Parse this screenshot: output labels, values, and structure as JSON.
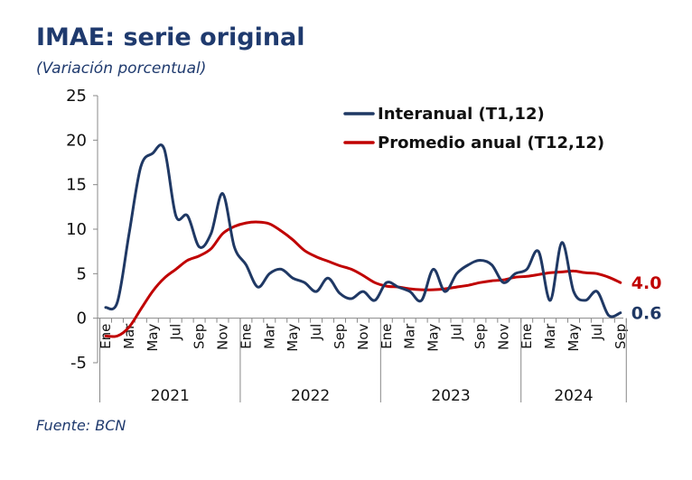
{
  "title": "IMAE: serie original",
  "subtitle": "(Variación porcentual)",
  "source": "Fuente: BCN",
  "chart_data": {
    "type": "line",
    "ylim": [
      -5,
      25
    ],
    "yticks": [
      "-5",
      "0",
      "5",
      "10",
      "15",
      "20",
      "25"
    ],
    "month_labels": [
      "Ene",
      "Mar",
      "May",
      "Jul",
      "Sep",
      "Nov",
      "Ene",
      "Mar",
      "May",
      "Jul",
      "Sep",
      "Nov",
      "Ene",
      "Mar",
      "May",
      "Jul",
      "Sep",
      "Nov",
      "Ene",
      "Mar",
      "May",
      "Jul",
      "Sep"
    ],
    "years": [
      "2021",
      "2022",
      "2023",
      "2024"
    ],
    "legend_position": "top-right",
    "series": [
      {
        "name": "Interanual (T1,12)",
        "color": "#1f3864",
        "values": [
          1.2,
          1.8,
          9.5,
          17.0,
          18.5,
          19.0,
          11.5,
          11.5,
          8.0,
          9.5,
          14.0,
          8.0,
          6.0,
          3.5,
          5.0,
          5.5,
          4.5,
          4.0,
          3.0,
          4.5,
          2.8,
          2.2,
          3.0,
          2.0,
          4.0,
          3.5,
          3.0,
          2.0,
          5.5,
          3.0,
          5.0,
          6.0,
          6.5,
          6.0,
          4.0,
          5.0,
          5.5,
          7.5,
          2.0,
          8.5,
          3.0,
          2.0,
          3.0,
          0.3,
          0.6
        ],
        "end_label": "0.6"
      },
      {
        "name": "Promedio anual (T12,12)",
        "color": "#c00000",
        "values": [
          -2.0,
          -2.0,
          -1.0,
          1.0,
          3.0,
          4.5,
          5.5,
          6.5,
          7.0,
          7.8,
          9.5,
          10.3,
          10.7,
          10.8,
          10.6,
          9.8,
          8.8,
          7.6,
          6.9,
          6.4,
          5.9,
          5.5,
          4.8,
          4.0,
          3.6,
          3.5,
          3.3,
          3.2,
          3.2,
          3.3,
          3.5,
          3.7,
          4.0,
          4.2,
          4.3,
          4.6,
          4.7,
          4.9,
          5.1,
          5.2,
          5.3,
          5.1,
          5.0,
          4.6,
          4.0
        ],
        "end_label": "4.0"
      }
    ]
  }
}
